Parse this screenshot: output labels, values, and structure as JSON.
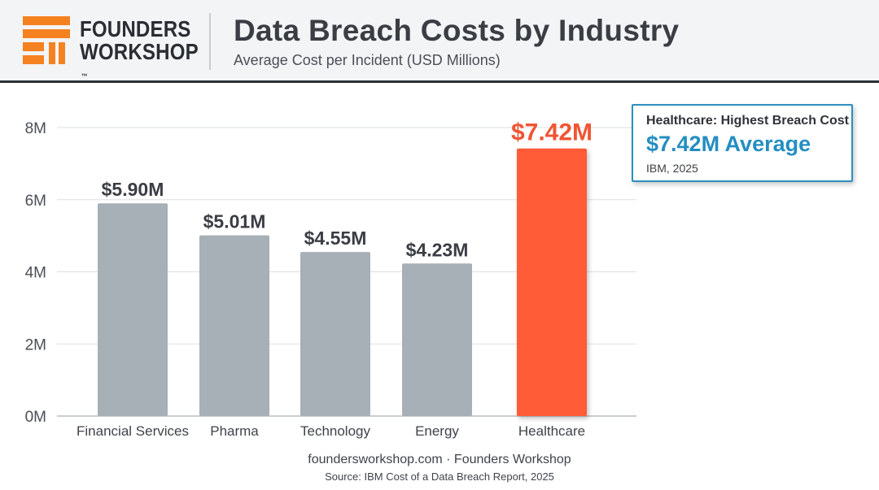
{
  "brand": {
    "line1": "FOUNDERS",
    "line2": "WORKSHOP",
    "trademark": "™",
    "accent_color": "#f58220"
  },
  "header": {
    "title": "Data Breach Costs by Industry",
    "subtitle": "Average Cost per Incident (USD Millions)"
  },
  "callout": {
    "heading": "Healthcare: Highest Breach Cost",
    "value": "$7.42M Average",
    "source": "IBM, 2025",
    "border_color": "#2c8fbf"
  },
  "footer": {
    "line1": "foundersworkshop.com · Founders Workshop",
    "line2": "Source: IBM Cost of a Data Breach Report, 2025"
  },
  "chart_data": {
    "type": "bar",
    "categories": [
      "Financial Services",
      "Pharma",
      "Technology",
      "Energy",
      "Healthcare"
    ],
    "values": [
      5.9,
      5.01,
      4.55,
      4.23,
      7.42
    ],
    "value_labels": [
      "$5.90M",
      "$5.01M",
      "$4.55M",
      "$4.23M",
      "$7.42M"
    ],
    "ylim": [
      0,
      8
    ],
    "yticks": [
      0,
      2,
      4,
      6,
      8
    ],
    "ytick_labels": [
      "0M",
      "2M",
      "4M",
      "6M",
      "8M"
    ],
    "grid": true,
    "highlight_category": "Healthcare",
    "colors": {
      "default_bar": "#a7afb7",
      "highlight_bar": "#ff5c37",
      "highlight_label": "#f05533",
      "label": "#3a3d44",
      "grid": "#dcdfe3"
    }
  }
}
